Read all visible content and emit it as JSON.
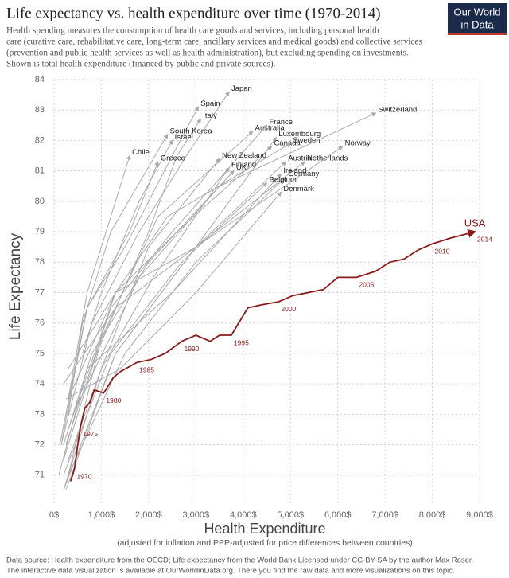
{
  "chart_data": {
    "type": "line",
    "title": "Life expectancy vs. health expenditure over time (1970-2014)",
    "subtitle": [
      "Health spending measures the consumption of health care goods and services, including personal health",
      "care (curative care, rehabilitative care, long-term care, ancillary services and medical goods) and collective services",
      "(prevention and public health services as well as health administration), but excluding spending on investments.",
      "Shown is total health expenditure (financed by public and private sources)."
    ],
    "logo": [
      "Our World",
      "in Data"
    ],
    "y_label": "Life Expectancy",
    "x_label": "Health Expenditure",
    "x_sublabel": "(adjusted for inflation and PPP-adjusted for price differences between countries)",
    "footer": [
      "Data source: Health expenditure from the OECD; Life expectancy from the World Bank    Licensed under CC-BY-SA by the author Max Roser.",
      "The interactive data visualization is available at OurWorldinData.org. There you find the raw data and more visualizations on this topic."
    ],
    "xlim": [
      0,
      9000
    ],
    "ylim": [
      70,
      84
    ],
    "xticks": [
      {
        "value": 0,
        "label": "0$"
      },
      {
        "value": 1000,
        "label": "1,000$"
      },
      {
        "value": 2000,
        "label": "2,000$"
      },
      {
        "value": 3000,
        "label": "3,000$"
      },
      {
        "value": 4000,
        "label": "4,000$"
      },
      {
        "value": 5000,
        "label": "5,000$"
      },
      {
        "value": 6000,
        "label": "6,000$"
      },
      {
        "value": 7000,
        "label": "7,000$"
      },
      {
        "value": 8000,
        "label": "8,000$"
      },
      {
        "value": 9000,
        "label": "9,000$"
      }
    ],
    "yticks": [
      71,
      72,
      73,
      74,
      75,
      76,
      77,
      78,
      79,
      80,
      81,
      82,
      83,
      84
    ],
    "grid": true,
    "series": [
      {
        "name": "Japan",
        "color": "#aaaaaa",
        "x": [
          150,
          800,
          1800,
          2800,
          3700
        ],
        "values": [
          72.0,
          76.0,
          79.0,
          81.5,
          83.6
        ]
      },
      {
        "name": "Spain",
        "color": "#aaaaaa",
        "x": [
          120,
          700,
          1500,
          2500,
          3050
        ],
        "values": [
          72.0,
          76.5,
          78.5,
          81.5,
          83.1
        ]
      },
      {
        "name": "Italy",
        "color": "#aaaaaa",
        "x": [
          200,
          900,
          2000,
          2600,
          3100
        ],
        "values": [
          71.5,
          75.0,
          79.0,
          81.5,
          82.7
        ]
      },
      {
        "name": "South Korea",
        "color": "#aaaaaa",
        "x": [
          300,
          600,
          1200,
          2400
        ],
        "values": [
          73.0,
          76.0,
          79.0,
          82.2
        ]
      },
      {
        "name": "Israel",
        "color": "#aaaaaa",
        "x": [
          600,
          1000,
          1800,
          2500
        ],
        "values": [
          75.0,
          77.0,
          80.0,
          82.0
        ]
      },
      {
        "name": "Chile",
        "color": "#aaaaaa",
        "x": [
          300,
          700,
          1200,
          1600
        ],
        "values": [
          73.5,
          77.0,
          79.5,
          81.5
        ]
      },
      {
        "name": "Greece",
        "color": "#aaaaaa",
        "x": [
          150,
          700,
          1600,
          2200
        ],
        "values": [
          72.0,
          76.5,
          79.0,
          81.3
        ]
      },
      {
        "name": "Australia",
        "color": "#aaaaaa",
        "x": [
          300,
          1000,
          2200,
          4200
        ],
        "values": [
          71.0,
          75.5,
          79.5,
          82.3
        ]
      },
      {
        "name": "France",
        "color": "#aaaaaa",
        "x": [
          250,
          1200,
          2500,
          4500
        ],
        "values": [
          72.0,
          76.5,
          79.0,
          82.5
        ]
      },
      {
        "name": "Luxembourg",
        "color": "#aaaaaa",
        "x": [
          200,
          1300,
          3000,
          4700
        ],
        "values": [
          70.5,
          75.0,
          78.5,
          82.1
        ]
      },
      {
        "name": "Canada",
        "color": "#aaaaaa",
        "x": [
          300,
          1300,
          2600,
          4600
        ],
        "values": [
          72.5,
          77.0,
          79.0,
          81.8
        ]
      },
      {
        "name": "Sweden",
        "color": "#aaaaaa",
        "x": [
          300,
          1300,
          2400,
          5000
        ],
        "values": [
          74.5,
          77.0,
          79.5,
          81.9
        ]
      },
      {
        "name": "Switzerland",
        "color": "#aaaaaa",
        "x": [
          400,
          1800,
          3500,
          6800
        ],
        "values": [
          73.0,
          77.5,
          80.5,
          82.9
        ]
      },
      {
        "name": "Norway",
        "color": "#aaaaaa",
        "x": [
          200,
          1300,
          3000,
          6100
        ],
        "values": [
          74.0,
          76.5,
          78.5,
          81.8
        ]
      },
      {
        "name": "New Zealand",
        "color": "#aaaaaa",
        "x": [
          300,
          1000,
          2000,
          3500
        ],
        "values": [
          71.5,
          74.5,
          78.5,
          81.4
        ]
      },
      {
        "name": "Finland",
        "color": "#aaaaaa",
        "x": [
          200,
          1000,
          2100,
          3700
        ],
        "values": [
          70.5,
          74.5,
          77.5,
          81.1
        ]
      },
      {
        "name": "UK",
        "color": "#aaaaaa",
        "x": [
          200,
          800,
          2000,
          3800
        ],
        "values": [
          72.0,
          75.0,
          78.0,
          81.0
        ]
      },
      {
        "name": "Austria",
        "color": "#aaaaaa",
        "x": [
          250,
          1300,
          3000,
          4900
        ],
        "values": [
          70.5,
          75.0,
          78.5,
          81.3
        ]
      },
      {
        "name": "Netherlands",
        "color": "#aaaaaa",
        "x": [
          300,
          1300,
          3000,
          5300
        ],
        "values": [
          73.5,
          77.0,
          78.5,
          81.3
        ]
      },
      {
        "name": "Ireland",
        "color": "#aaaaaa",
        "x": [
          100,
          700,
          2500,
          4800
        ],
        "values": [
          71.0,
          74.5,
          77.0,
          80.9
        ]
      },
      {
        "name": "Germany",
        "color": "#aaaaaa",
        "x": [
          300,
          1500,
          3000,
          4900
        ],
        "values": [
          71.0,
          75.0,
          78.0,
          80.8
        ]
      },
      {
        "name": "Belgium",
        "color": "#aaaaaa",
        "x": [
          200,
          1200,
          2700,
          4500
        ],
        "values": [
          71.0,
          75.0,
          78.0,
          80.6
        ]
      },
      {
        "name": "Denmark",
        "color": "#aaaaaa",
        "x": [
          250,
          1400,
          3000,
          4800
        ],
        "values": [
          73.5,
          74.5,
          77.0,
          80.3
        ]
      },
      {
        "name": "USA",
        "color": "#8b1a1a",
        "x": [
          350,
          430,
          500,
          560,
          650,
          760,
          850,
          1050,
          1250,
          1400,
          1750,
          2050,
          2350,
          2700,
          3000,
          3300,
          3500,
          3750,
          4100,
          4400,
          4750,
          5050,
          5700,
          6000,
          6400,
          6800,
          7100,
          7400,
          7700,
          8000,
          8400,
          8900
        ],
        "values": [
          70.8,
          71.2,
          72.0,
          72.6,
          73.2,
          73.4,
          73.8,
          73.7,
          74.2,
          74.4,
          74.7,
          74.8,
          75.0,
          75.4,
          75.6,
          75.4,
          75.6,
          75.6,
          76.5,
          76.6,
          76.7,
          76.9,
          77.1,
          77.5,
          77.5,
          77.7,
          78.0,
          78.1,
          78.4,
          78.6,
          78.8,
          79.0
        ]
      }
    ],
    "annotations": [
      {
        "text": "1970",
        "x": 430,
        "y": 71.2
      },
      {
        "text": "1975",
        "x": 560,
        "y": 72.6
      },
      {
        "text": "1980",
        "x": 1050,
        "y": 73.7
      },
      {
        "text": "1985",
        "x": 1750,
        "y": 74.7
      },
      {
        "text": "1990",
        "x": 2700,
        "y": 75.4
      },
      {
        "text": "1995",
        "x": 3750,
        "y": 75.6
      },
      {
        "text": "2000",
        "x": 4750,
        "y": 76.7
      },
      {
        "text": "2005",
        "x": 6400,
        "y": 77.5
      },
      {
        "text": "2010",
        "x": 8000,
        "y": 78.6
      },
      {
        "text": "2014",
        "x": 8900,
        "y": 79.0
      }
    ]
  }
}
